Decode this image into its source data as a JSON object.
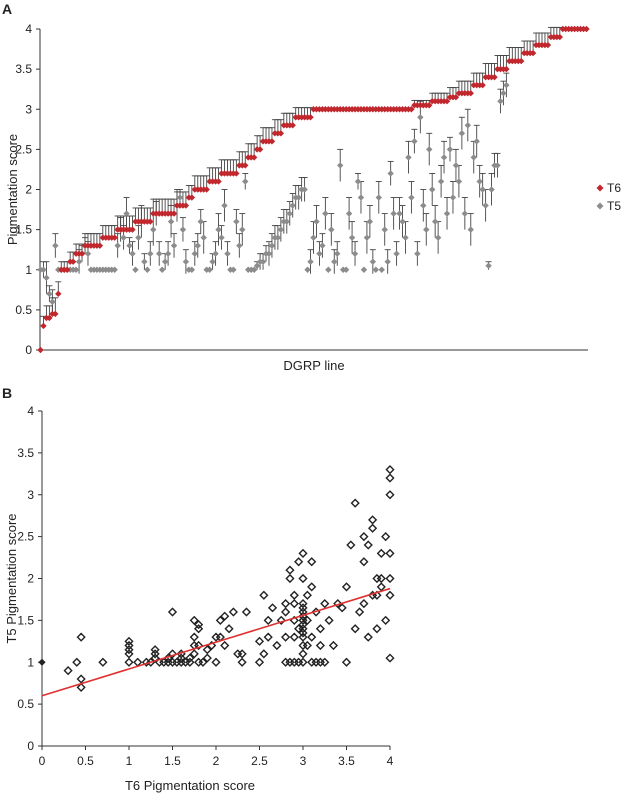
{
  "figure": {
    "panels": [
      "A",
      "B"
    ]
  },
  "chart_data": [
    {
      "panel": "A",
      "type": "scatter",
      "xlabel": "DGRP line",
      "ylabel": "Pigmentation score",
      "ylim": [
        0,
        4
      ],
      "yticks": [
        "0",
        "0.5",
        "1",
        "1.5",
        "2",
        "2.5",
        "3",
        "3.5",
        "4"
      ],
      "legend_position": "right",
      "error_bars": true,
      "series": [
        {
          "name": "T6",
          "color": "#c0282e",
          "marker": "diamond",
          "levels": [
            {
              "y": 0,
              "count": 1,
              "err": 0
            },
            {
              "y": 0.3,
              "count": 1,
              "err": 0.12
            },
            {
              "y": 0.4,
              "count": 2,
              "err": 0.15
            },
            {
              "y": 0.45,
              "count": 2,
              "err": 0.2
            },
            {
              "y": 0.7,
              "count": 1,
              "err": 0.15
            },
            {
              "y": 1.0,
              "count": 3,
              "err": 0.1
            },
            {
              "y": 1.1,
              "count": 2,
              "err": 0.12
            },
            {
              "y": 1.2,
              "count": 3,
              "err": 0.12
            },
            {
              "y": 1.3,
              "count": 6,
              "err": 0.15
            },
            {
              "y": 1.4,
              "count": 5,
              "err": 0.15
            },
            {
              "y": 1.5,
              "count": 6,
              "err": 0.17
            },
            {
              "y": 1.6,
              "count": 6,
              "err": 0.17
            },
            {
              "y": 1.7,
              "count": 8,
              "err": 0.18
            },
            {
              "y": 1.8,
              "count": 4,
              "err": 0.17
            },
            {
              "y": 1.9,
              "count": 2,
              "err": 0.15
            },
            {
              "y": 2.0,
              "count": 5,
              "err": 0.17
            },
            {
              "y": 2.1,
              "count": 4,
              "err": 0.17
            },
            {
              "y": 2.2,
              "count": 6,
              "err": 0.17
            },
            {
              "y": 2.3,
              "count": 3,
              "err": 0.17
            },
            {
              "y": 2.4,
              "count": 3,
              "err": 0.17
            },
            {
              "y": 2.5,
              "count": 2,
              "err": 0.17
            },
            {
              "y": 2.6,
              "count": 4,
              "err": 0.17
            },
            {
              "y": 2.7,
              "count": 3,
              "err": 0.17
            },
            {
              "y": 2.8,
              "count": 4,
              "err": 0.15
            },
            {
              "y": 2.9,
              "count": 6,
              "err": 0.12
            },
            {
              "y": 3.0,
              "count": 34,
              "err": 0
            },
            {
              "y": 3.05,
              "count": 6,
              "err": 0.06
            },
            {
              "y": 3.1,
              "count": 6,
              "err": 0.1
            },
            {
              "y": 3.15,
              "count": 3,
              "err": 0.12
            },
            {
              "y": 3.2,
              "count": 5,
              "err": 0.15
            },
            {
              "y": 3.3,
              "count": 4,
              "err": 0.15
            },
            {
              "y": 3.4,
              "count": 4,
              "err": 0.17
            },
            {
              "y": 3.5,
              "count": 4,
              "err": 0.17
            },
            {
              "y": 3.6,
              "count": 5,
              "err": 0.17
            },
            {
              "y": 3.7,
              "count": 4,
              "err": 0.15
            },
            {
              "y": 3.8,
              "count": 5,
              "err": 0.15
            },
            {
              "y": 3.9,
              "count": 4,
              "err": 0.12
            },
            {
              "y": 4.0,
              "count": 9,
              "err": 0
            }
          ]
        },
        {
          "name": "T5",
          "color": "#8c8c8c",
          "marker": "diamond",
          "values": [
            1.0,
            1.0,
            0.9,
            0.7,
            0.6,
            1.3,
            1.0,
            1.0,
            1.0,
            1.0,
            1.0,
            1.0,
            1.0,
            1.1,
            1.2,
            1.3,
            1.2,
            1.0,
            1.0,
            1.0,
            1.0,
            1.0,
            1.0,
            1.0,
            1.0,
            1.0,
            1.3,
            1.5,
            1.4,
            1.7,
            1.3,
            1.2,
            1.0,
            1.4,
            1.6,
            1.1,
            1.0,
            1.2,
            1.5,
            1.7,
            1.2,
            1.0,
            1.1,
            1.2,
            1.6,
            1.3,
            1.8,
            1.9,
            1.5,
            1.1,
            1.0,
            1.0,
            1.2,
            1.3,
            1.6,
            1.4,
            1.0,
            1.0,
            1.1,
            1.2,
            1.5,
            1.4,
            1.8,
            1.2,
            1.0,
            1.0,
            1.6,
            1.3,
            1.5,
            2.1,
            1.0,
            1.0,
            1.0,
            1.05,
            1.1,
            1.1,
            1.2,
            1.2,
            1.3,
            1.4,
            1.4,
            1.5,
            1.6,
            1.6,
            1.7,
            1.8,
            1.9,
            1.9,
            2.0,
            2.0,
            1.0,
            1.1,
            1.4,
            1.6,
            1.2,
            1.3,
            1.7,
            1.0,
            1.5,
            1.1,
            1.2,
            2.3,
            1.0,
            1.0,
            1.7,
            1.4,
            1.2,
            2.1,
            1.9,
            1.0,
            1.4,
            1.6,
            1.1,
            1.0,
            1.9,
            1.0,
            1.5,
            1.1,
            2.2,
            1.7,
            1.2,
            1.7,
            1.6,
            1.4,
            2.4,
            1.9,
            2.6,
            1.2,
            2.9,
            1.8,
            1.5,
            2.5,
            2.0,
            1.6,
            1.4,
            2.1,
            2.4,
            1.7,
            2.5,
            1.9,
            2.3,
            2.1,
            2.7,
            1.7,
            2.8,
            1.5,
            2.4,
            2.6,
            2.1,
            2.0,
            1.8,
            1.05,
            2.0,
            2.3,
            2.3,
            3.1,
            3.2,
            3.3
          ],
          "errs": [
            0,
            0.1,
            0.2,
            0.1,
            0.15,
            0.15,
            0,
            0,
            0,
            0,
            0,
            0,
            0,
            0.15,
            0.1,
            0.1,
            0.15,
            0,
            0,
            0,
            0,
            0,
            0,
            0,
            0,
            0,
            0.15,
            0.15,
            0.15,
            0.2,
            0.1,
            0.15,
            0,
            0.15,
            0.2,
            0.1,
            0,
            0.15,
            0.2,
            0.15,
            0.15,
            0,
            0.1,
            0.15,
            0.2,
            0.15,
            0.2,
            0.1,
            0.15,
            0.15,
            0,
            0,
            0.15,
            0.15,
            0.15,
            0.2,
            0,
            0,
            0.1,
            0.15,
            0.2,
            0.15,
            0.2,
            0.15,
            0,
            0,
            0.15,
            0.15,
            0.2,
            0.1,
            0,
            0,
            0,
            0.05,
            0.1,
            0.1,
            0.1,
            0.15,
            0.15,
            0.15,
            0.15,
            0.15,
            0.15,
            0.15,
            0.15,
            0.15,
            0.15,
            0.15,
            0.15,
            0.15,
            0,
            0.15,
            0.2,
            0.2,
            0.15,
            0.15,
            0.2,
            0,
            0.2,
            0.15,
            0.15,
            0.2,
            0,
            0,
            0.2,
            0.2,
            0.15,
            0.1,
            0.2,
            0,
            0.2,
            0.2,
            0.15,
            0,
            0.2,
            0,
            0.2,
            0.15,
            0.15,
            0.2,
            0.15,
            0.2,
            0.2,
            0.2,
            0.2,
            0.2,
            0.15,
            0.15,
            0.2,
            0.2,
            0.2,
            0.2,
            0.2,
            0.2,
            0.2,
            0.2,
            0.2,
            0.2,
            0.15,
            0.2,
            0.2,
            0.2,
            0.2,
            0.2,
            0.2,
            0.2,
            0.2,
            0.2,
            0.2,
            0.2,
            0.2,
            0.05,
            0.2,
            0.15,
            0.15,
            0.15,
            0.15,
            0.15
          ]
        }
      ]
    },
    {
      "panel": "B",
      "type": "scatter",
      "xlabel": "T6 Pigmentation score",
      "ylabel": "T5 Pigmentation score",
      "xlim": [
        0,
        4
      ],
      "ylim": [
        0,
        4
      ],
      "xticks": [
        "0",
        "0.5",
        "1",
        "1.5",
        "2",
        "2.5",
        "3",
        "3.5",
        "4"
      ],
      "yticks": [
        "0",
        "0.5",
        "1",
        "1.5",
        "2",
        "2.5",
        "3",
        "3.5",
        "4"
      ],
      "marker_color": "#222222",
      "trend_color": "#e03030",
      "trendline": {
        "intercept": 0.6,
        "slope": 0.32
      },
      "points": [
        [
          0,
          1
        ],
        [
          0.3,
          0.9
        ],
        [
          0.4,
          1.0
        ],
        [
          0.45,
          1.3
        ],
        [
          0.45,
          0.8
        ],
        [
          0.45,
          0.7
        ],
        [
          0.7,
          1.0
        ],
        [
          1,
          1
        ],
        [
          1,
          1.1
        ],
        [
          1,
          1.15
        ],
        [
          1,
          1.2
        ],
        [
          1,
          1.25
        ],
        [
          1.1,
          1.0
        ],
        [
          1.2,
          1.0
        ],
        [
          1.25,
          1.0
        ],
        [
          1.3,
          1.05
        ],
        [
          1.3,
          1.1
        ],
        [
          1.3,
          1.15
        ],
        [
          1.35,
          1.0
        ],
        [
          1.4,
          1.0
        ],
        [
          1.45,
          1.0
        ],
        [
          1.45,
          1.05
        ],
        [
          1.5,
          1.0
        ],
        [
          1.5,
          1.1
        ],
        [
          1.5,
          1.6
        ],
        [
          1.55,
          1.0
        ],
        [
          1.6,
          1.0
        ],
        [
          1.6,
          1.05
        ],
        [
          1.6,
          1.1
        ],
        [
          1.65,
          1.0
        ],
        [
          1.7,
          1.0
        ],
        [
          1.7,
          1.05
        ],
        [
          1.75,
          1.1
        ],
        [
          1.75,
          1.2
        ],
        [
          1.75,
          1.3
        ],
        [
          1.75,
          1.5
        ],
        [
          1.8,
          1.0
        ],
        [
          1.8,
          1.2
        ],
        [
          1.8,
          1.4
        ],
        [
          1.8,
          1.45
        ],
        [
          1.85,
          1.0
        ],
        [
          1.9,
          1.05
        ],
        [
          1.9,
          1.15
        ],
        [
          1.95,
          1.2
        ],
        [
          2.0,
          1.0
        ],
        [
          2.0,
          1.3
        ],
        [
          2.05,
          1.3
        ],
        [
          2.05,
          1.5
        ],
        [
          2.1,
          1.2
        ],
        [
          2.1,
          1.55
        ],
        [
          2.15,
          1.4
        ],
        [
          2.2,
          1.6
        ],
        [
          2.25,
          1.1
        ],
        [
          2.3,
          1.0
        ],
        [
          2.3,
          1.1
        ],
        [
          2.35,
          1.6
        ],
        [
          2.5,
          1.0
        ],
        [
          2.5,
          1.25
        ],
        [
          2.55,
          1.1
        ],
        [
          2.55,
          1.8
        ],
        [
          2.6,
          1.3
        ],
        [
          2.6,
          1.5
        ],
        [
          2.65,
          1.65
        ],
        [
          2.7,
          1.2
        ],
        [
          2.75,
          1.5
        ],
        [
          2.8,
          1.0
        ],
        [
          2.8,
          1.3
        ],
        [
          2.8,
          1.6
        ],
        [
          2.8,
          1.7
        ],
        [
          2.85,
          1.0
        ],
        [
          2.85,
          2.0
        ],
        [
          2.85,
          2.1
        ],
        [
          2.9,
          1.0
        ],
        [
          2.9,
          1.3
        ],
        [
          2.9,
          1.5
        ],
        [
          2.9,
          1.7
        ],
        [
          2.9,
          1.8
        ],
        [
          2.95,
          1.0
        ],
        [
          2.95,
          1.4
        ],
        [
          2.95,
          2.2
        ],
        [
          3.0,
          1.0
        ],
        [
          3.0,
          1.1
        ],
        [
          3.0,
          1.2
        ],
        [
          3.0,
          1.3
        ],
        [
          3.0,
          1.35
        ],
        [
          3.0,
          1.4
        ],
        [
          3.0,
          1.45
        ],
        [
          3.0,
          1.5
        ],
        [
          3.0,
          1.55
        ],
        [
          3.0,
          1.6
        ],
        [
          3.0,
          1.65
        ],
        [
          3.0,
          1.7
        ],
        [
          3.0,
          2.0
        ],
        [
          3.0,
          2.3
        ],
        [
          3.05,
          1.2
        ],
        [
          3.05,
          1.5
        ],
        [
          3.05,
          1.8
        ],
        [
          3.1,
          1.0
        ],
        [
          3.1,
          1.3
        ],
        [
          3.1,
          1.9
        ],
        [
          3.1,
          2.2
        ],
        [
          3.15,
          1.0
        ],
        [
          3.15,
          1.6
        ],
        [
          3.2,
          1.0
        ],
        [
          3.2,
          1.2
        ],
        [
          3.2,
          1.4
        ],
        [
          3.25,
          1.0
        ],
        [
          3.25,
          1.7
        ],
        [
          3.3,
          1.5
        ],
        [
          3.35,
          1.2
        ],
        [
          3.4,
          1.7
        ],
        [
          3.45,
          1.65
        ],
        [
          3.5,
          1.0
        ],
        [
          3.5,
          1.9
        ],
        [
          3.55,
          2.4
        ],
        [
          3.6,
          1.4
        ],
        [
          3.6,
          2.9
        ],
        [
          3.65,
          1.6
        ],
        [
          3.7,
          1.7
        ],
        [
          3.7,
          2.2
        ],
        [
          3.7,
          2.5
        ],
        [
          3.75,
          1.3
        ],
        [
          3.75,
          2.4
        ],
        [
          3.8,
          1.8
        ],
        [
          3.8,
          2.6
        ],
        [
          3.8,
          2.7
        ],
        [
          3.85,
          1.4
        ],
        [
          3.85,
          2.0
        ],
        [
          3.85,
          1.8
        ],
        [
          3.9,
          1.9
        ],
        [
          3.9,
          2.3
        ],
        [
          3.9,
          2.0
        ],
        [
          3.95,
          2.5
        ],
        [
          3.95,
          1.5
        ],
        [
          4.0,
          1.05
        ],
        [
          4.0,
          1.8
        ],
        [
          4.0,
          2.0
        ],
        [
          4.0,
          2.3
        ],
        [
          4.0,
          3.0
        ],
        [
          4.0,
          3.2
        ],
        [
          4.0,
          3.3
        ]
      ]
    }
  ]
}
